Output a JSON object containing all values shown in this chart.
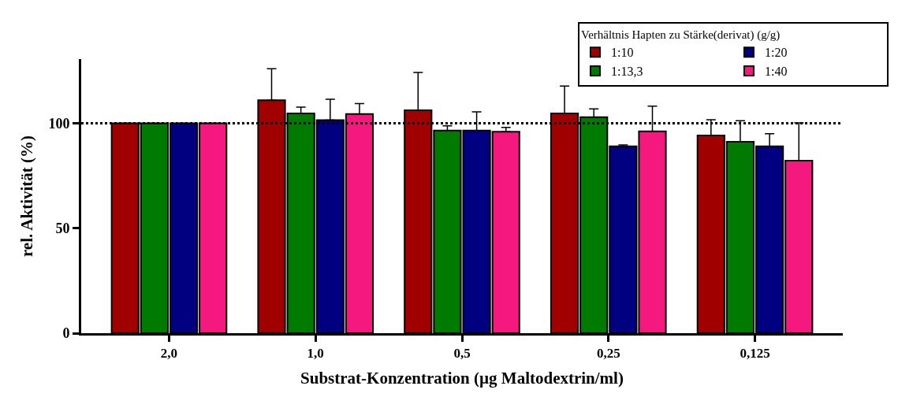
{
  "chart_data": {
    "type": "bar",
    "xlabel": "Substrat-Konzentration (µg Maltodextrin/ml)",
    "ylabel": "rel. Aktivität (%)",
    "legend_title": "Verhältnis Hapten zu Stärke(derivat) (g/g)",
    "categories": [
      "2,0",
      "1,0",
      "0,5",
      "0,25",
      "0,125"
    ],
    "series": [
      {
        "name": "1:10",
        "color": "#a00000",
        "values": [
          100,
          111,
          106.2,
          104.7,
          94.2
        ],
        "errors": [
          null,
          [
            111,
            126
          ],
          [
            106.2,
            124.2
          ],
          [
            104.7,
            117.7
          ],
          [
            94.2,
            101.7
          ]
        ]
      },
      {
        "name": "1:13,3",
        "color": "#007a00",
        "values": [
          100,
          104.7,
          96.5,
          102.9,
          91.2
        ],
        "errors": [
          null,
          [
            104.7,
            107.7
          ],
          [
            96.5,
            98.8
          ],
          [
            102.9,
            106.9
          ],
          [
            91.2,
            101.2
          ]
        ]
      },
      {
        "name": "1:20",
        "color": "#000080",
        "values": [
          100,
          101.5,
          96.5,
          89,
          89
        ],
        "errors": [
          null,
          [
            101.5,
            111.5
          ],
          [
            96.5,
            105.5
          ],
          [
            89,
            89.7
          ],
          [
            89,
            95
          ]
        ]
      },
      {
        "name": "1:40",
        "color": "#f5197f",
        "values": [
          100,
          104.4,
          96,
          96.2,
          82.2
        ],
        "errors": [
          null,
          [
            104.4,
            109.4
          ],
          [
            96,
            98
          ],
          [
            96.2,
            108.2
          ],
          [
            82.2,
            100.2
          ]
        ]
      }
    ],
    "ylim": [
      0,
      130.6
    ],
    "yticks": [
      0,
      50,
      100
    ],
    "ref_lines": [
      {
        "axis": "y",
        "value": 100,
        "line_style": "dotted"
      }
    ],
    "legend": "top right"
  }
}
